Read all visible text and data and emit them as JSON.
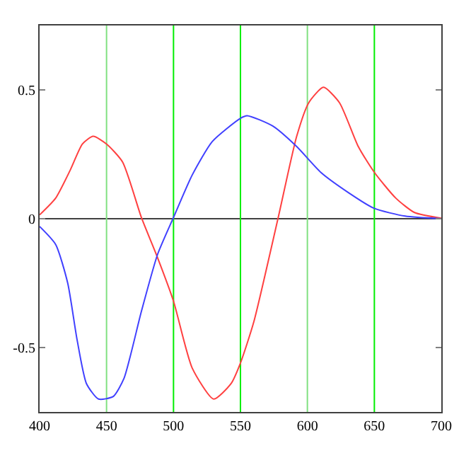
{
  "chart_data": {
    "type": "line",
    "xlim": [
      400,
      700
    ],
    "ylim": [
      -0.75,
      0.75
    ],
    "xticks": [
      400,
      450,
      500,
      550,
      600,
      650,
      700
    ],
    "yticks": [
      -0.5,
      0,
      0.5
    ],
    "grid": false,
    "marker": "none",
    "line_style": "solid",
    "ref_lines": [
      {
        "axis": "y",
        "value": 0,
        "color": "#404040"
      },
      {
        "axis": "x",
        "value": 450,
        "color": "#80e080"
      },
      {
        "axis": "x",
        "value": 500,
        "color": "#00ee00"
      },
      {
        "axis": "x",
        "value": 550,
        "color": "#00ee00"
      },
      {
        "axis": "x",
        "value": 600,
        "color": "#80e080"
      },
      {
        "axis": "x",
        "value": 650,
        "color": "#00ee00"
      }
    ],
    "series": [
      {
        "color": "#ff4040",
        "x": [
          400,
          412,
          423,
          432,
          440,
          450,
          462,
          476,
          488,
          500,
          514,
          530,
          543,
          550,
          560,
          578,
          592,
          601,
          612,
          624,
          638,
          650,
          666,
          680,
          700
        ],
        "values": [
          0.015,
          0.08,
          0.19,
          0.29,
          0.32,
          0.29,
          0.22,
          0.005,
          -0.15,
          -0.32,
          -0.58,
          -0.7,
          -0.64,
          -0.56,
          -0.4,
          0,
          0.32,
          0.45,
          0.51,
          0.45,
          0.28,
          0.18,
          0.08,
          0.024,
          0.002
        ]
      },
      {
        "color": "#4040ff",
        "x": [
          400,
          412,
          421,
          428,
          435,
          444,
          455,
          463,
          476,
          488,
          500,
          514,
          529,
          550,
          555,
          574,
          592,
          610,
          631,
          650,
          673,
          700
        ],
        "values": [
          -0.03,
          -0.1,
          -0.25,
          -0.47,
          -0.64,
          -0.7,
          -0.69,
          -0.62,
          -0.36,
          -0.14,
          0.005,
          0.17,
          0.3,
          0.39,
          0.4,
          0.36,
          0.28,
          0.18,
          0.1,
          0.04,
          0.01,
          0
        ]
      }
    ]
  }
}
